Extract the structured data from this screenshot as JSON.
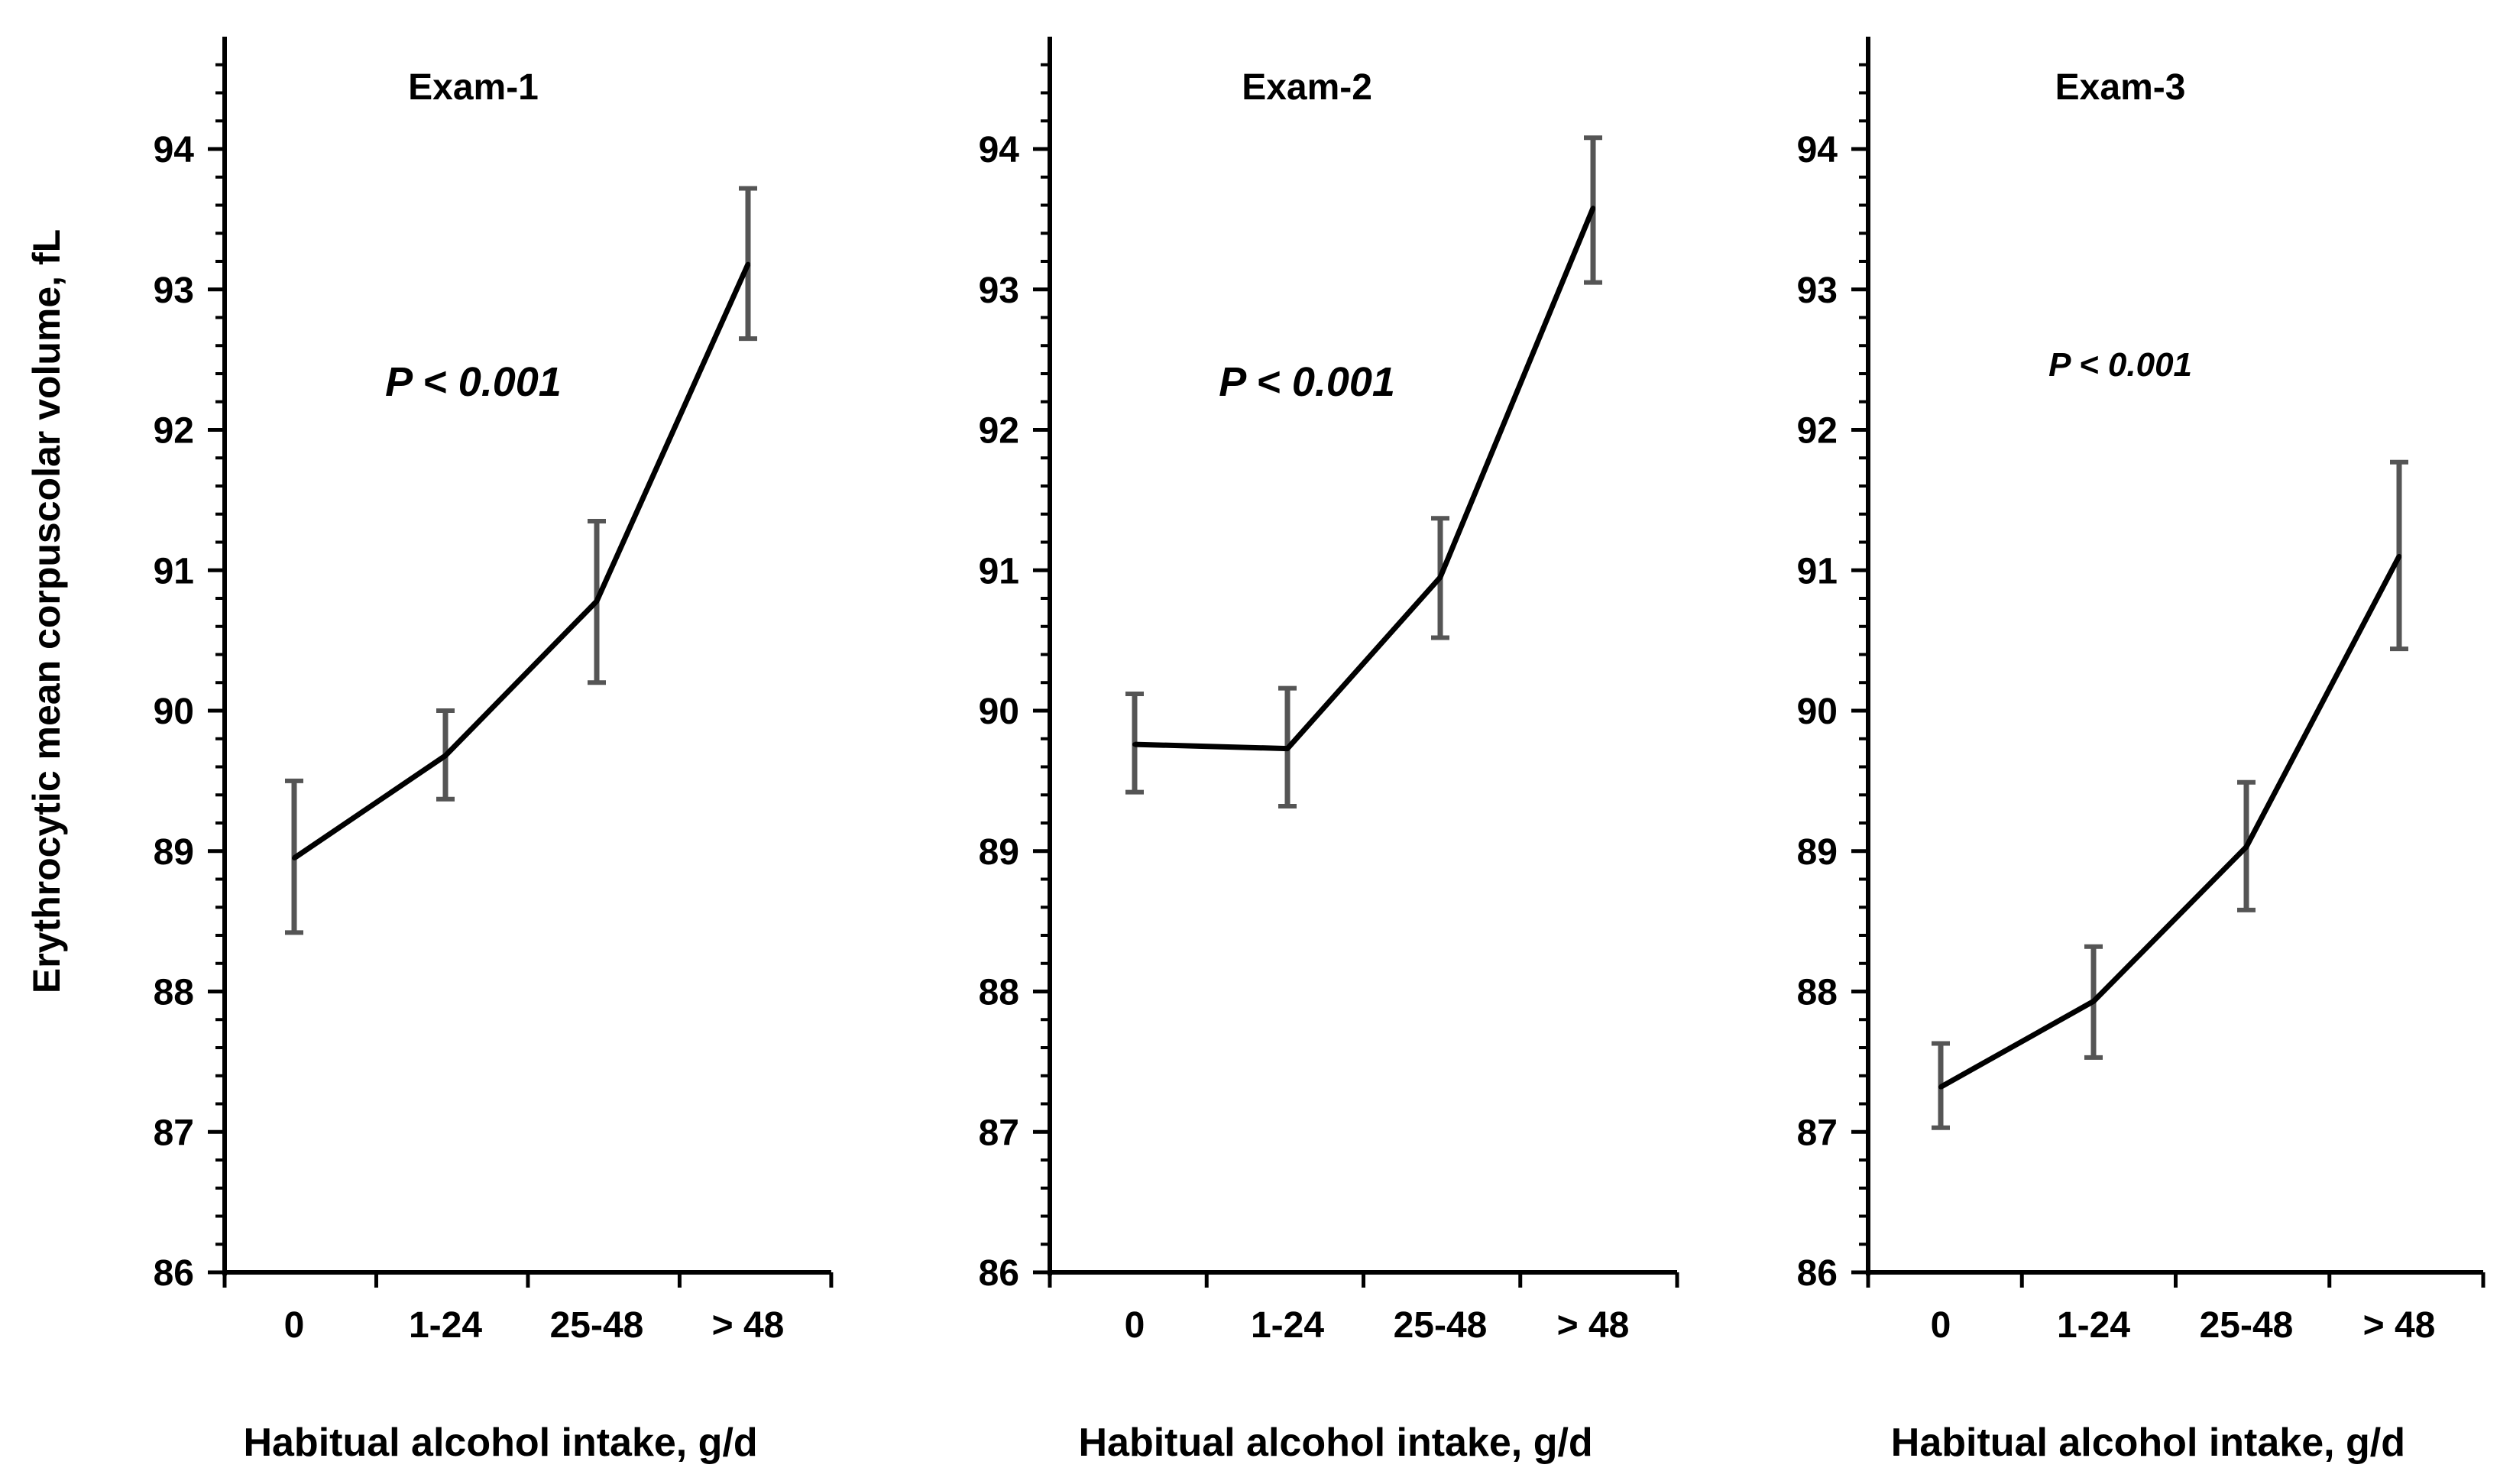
{
  "figure": {
    "y_axis_label": "Erythrocytic mean corpuscolar volume, fL"
  },
  "chart_data": [
    {
      "type": "line",
      "title": "Exam-1",
      "annotation": "P < 0.001",
      "xlabel": "Habitual alcohol intake, g/d",
      "ylabel": "Erythrocytic mean corpuscolar volume, fL",
      "categories": [
        "0",
        "1-24",
        "25-48",
        "> 48"
      ],
      "values": [
        88.95,
        89.68,
        90.78,
        93.18
      ],
      "error_low": [
        88.42,
        89.37,
        90.2,
        92.65
      ],
      "error_high": [
        89.5,
        90.0,
        91.35,
        93.72
      ],
      "ylim": [
        86,
        94.8
      ],
      "yticks": [
        "86",
        "87",
        "88",
        "89",
        "90",
        "91",
        "92",
        "93",
        "94"
      ]
    },
    {
      "type": "line",
      "title": "Exam-2",
      "annotation": "P < 0.001",
      "xlabel": "Habitual alcohol intake, g/d",
      "ylabel": "Erythrocytic mean corpuscolar volume, fL",
      "categories": [
        "0",
        "1-24",
        "25-48",
        "> 48"
      ],
      "values": [
        89.76,
        89.73,
        90.95,
        93.58
      ],
      "error_low": [
        89.42,
        89.32,
        90.52,
        93.05
      ],
      "error_high": [
        90.12,
        90.16,
        91.37,
        94.08
      ],
      "ylim": [
        86,
        94.8
      ],
      "yticks": [
        "86",
        "87",
        "88",
        "89",
        "90",
        "91",
        "92",
        "93",
        "94"
      ]
    },
    {
      "type": "line",
      "title": "Exam-3",
      "annotation": "P < 0.001",
      "xlabel": "Habitual alcohol intake, g/d",
      "ylabel": "Erythrocytic mean corpuscolar volume, fL",
      "categories": [
        "0",
        "1-24",
        "25-48",
        "> 48"
      ],
      "values": [
        87.32,
        87.93,
        89.03,
        91.1
      ],
      "error_low": [
        87.03,
        87.53,
        88.58,
        90.44
      ],
      "error_high": [
        87.63,
        88.32,
        89.49,
        91.77
      ],
      "ylim": [
        86,
        94.8
      ],
      "yticks": [
        "86",
        "87",
        "88",
        "89",
        "90",
        "91",
        "92",
        "93",
        "94"
      ]
    }
  ]
}
